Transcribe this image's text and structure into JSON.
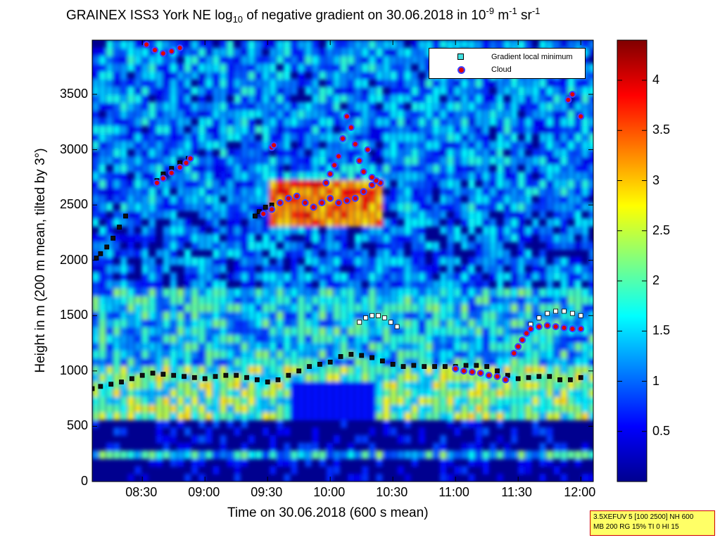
{
  "chart_data": {
    "type": "heatmap",
    "title": {
      "part1": "GRAINEX ISS3 York NE log",
      "sub1": "10",
      "part2": " of negative gradient on 30.06.2018 in 10",
      "sup1": "-9",
      "part3": " m",
      "sup2": "-1",
      "part4": " sr",
      "sup3": "-1"
    },
    "xlabel": "Time on 30.06.2018 (600 s mean)",
    "ylabel": "Height in m (200 m mean, tilted by 3°)",
    "xlim": [
      "08:06",
      "12:06"
    ],
    "ylim": [
      0,
      3990
    ],
    "x_ticks": [
      {
        "label": "08:30",
        "minutes": 510
      },
      {
        "label": "09:00",
        "minutes": 540
      },
      {
        "label": "09:30",
        "minutes": 570
      },
      {
        "label": "10:00",
        "minutes": 600
      },
      {
        "label": "10:30",
        "minutes": 630
      },
      {
        "label": "11:00",
        "minutes": 660
      },
      {
        "label": "11:30",
        "minutes": 690
      },
      {
        "label": "12:00",
        "minutes": 720
      }
    ],
    "y_ticks": [
      {
        "label": "0",
        "value": 0
      },
      {
        "label": "500",
        "value": 500
      },
      {
        "label": "1000",
        "value": 1000
      },
      {
        "label": "1500",
        "value": 1500
      },
      {
        "label": "2000",
        "value": 2000
      },
      {
        "label": "2500",
        "value": 2500
      },
      {
        "label": "3000",
        "value": 3000
      },
      {
        "label": "3500",
        "value": 3500
      }
    ],
    "colorbar": {
      "range": [
        0,
        4.4
      ],
      "ticks": [
        {
          "label": "0.5",
          "value": 0.5
        },
        {
          "label": "1",
          "value": 1
        },
        {
          "label": "1.5",
          "value": 1.5
        },
        {
          "label": "2",
          "value": 2
        },
        {
          "label": "2.5",
          "value": 2.5
        },
        {
          "label": "3",
          "value": 3
        },
        {
          "label": "3.5",
          "value": 3.5
        },
        {
          "label": "4",
          "value": 4
        }
      ],
      "colormap": "jet"
    },
    "legend": {
      "placement": "top-right",
      "entries": [
        {
          "label": "Gradient local minimum",
          "marker": "square",
          "color": "#40e0e0"
        },
        {
          "label": "Cloud",
          "marker": "circle",
          "color": "#e00000"
        }
      ]
    },
    "series": [
      {
        "name": "Gradient local minimum",
        "points": [
          [
            486,
            840
          ],
          [
            490,
            860
          ],
          [
            495,
            880
          ],
          [
            500,
            900
          ],
          [
            505,
            930
          ],
          [
            510,
            960
          ],
          [
            515,
            980
          ],
          [
            520,
            970
          ],
          [
            525,
            960
          ],
          [
            530,
            950
          ],
          [
            535,
            940
          ],
          [
            540,
            930
          ],
          [
            545,
            950
          ],
          [
            550,
            960
          ],
          [
            555,
            960
          ],
          [
            560,
            940
          ],
          [
            565,
            920
          ],
          [
            570,
            900
          ],
          [
            575,
            920
          ],
          [
            580,
            960
          ],
          [
            585,
            1000
          ],
          [
            590,
            1040
          ],
          [
            595,
            1060
          ],
          [
            600,
            1080
          ],
          [
            605,
            1130
          ],
          [
            610,
            1150
          ],
          [
            615,
            1140
          ],
          [
            620,
            1120
          ],
          [
            625,
            1090
          ],
          [
            630,
            1060
          ],
          [
            635,
            1040
          ],
          [
            640,
            1050
          ],
          [
            645,
            1040
          ],
          [
            650,
            1040
          ],
          [
            655,
            1040
          ],
          [
            660,
            1040
          ],
          [
            665,
            1050
          ],
          [
            670,
            1050
          ],
          [
            675,
            1040
          ],
          [
            680,
            1000
          ],
          [
            685,
            960
          ],
          [
            690,
            930
          ],
          [
            695,
            940
          ],
          [
            700,
            950
          ],
          [
            705,
            950
          ],
          [
            710,
            920
          ],
          [
            715,
            920
          ],
          [
            720,
            940
          ],
          [
            614,
            1440
          ],
          [
            617,
            1480
          ],
          [
            620,
            1500
          ],
          [
            623,
            1500
          ],
          [
            626,
            1480
          ],
          [
            629,
            1440
          ],
          [
            632,
            1400
          ],
          [
            488,
            2020
          ],
          [
            490,
            2060
          ],
          [
            493,
            2120
          ],
          [
            496,
            2200
          ],
          [
            499,
            2300
          ],
          [
            502,
            2400
          ],
          [
            517,
            2720
          ],
          [
            520,
            2780
          ],
          [
            524,
            2830
          ],
          [
            528,
            2880
          ],
          [
            532,
            2920
          ],
          [
            564,
            2400
          ],
          [
            566,
            2440
          ],
          [
            569,
            2480
          ],
          [
            572,
            2500
          ],
          [
            696,
            1420
          ],
          [
            700,
            1480
          ],
          [
            704,
            1520
          ],
          [
            708,
            1540
          ],
          [
            712,
            1540
          ],
          [
            716,
            1520
          ],
          [
            720,
            1500
          ]
        ]
      },
      {
        "name": "Cloud",
        "points": [
          [
            512,
            3950
          ],
          [
            516,
            3900
          ],
          [
            520,
            3870
          ],
          [
            524,
            3890
          ],
          [
            528,
            3920
          ],
          [
            517,
            2700
          ],
          [
            520,
            2740
          ],
          [
            524,
            2790
          ],
          [
            528,
            2840
          ],
          [
            531,
            2880
          ],
          [
            533,
            2920
          ],
          [
            572,
            3020
          ],
          [
            573,
            3040
          ],
          [
            568,
            2420
          ],
          [
            572,
            2460
          ],
          [
            576,
            2520
          ],
          [
            580,
            2560
          ],
          [
            584,
            2580
          ],
          [
            588,
            2520
          ],
          [
            592,
            2480
          ],
          [
            596,
            2520
          ],
          [
            600,
            2560
          ],
          [
            604,
            2520
          ],
          [
            608,
            2540
          ],
          [
            612,
            2560
          ],
          [
            616,
            2620
          ],
          [
            620,
            2680
          ],
          [
            624,
            2700
          ],
          [
            622,
            2720
          ],
          [
            598,
            2700
          ],
          [
            600,
            2780
          ],
          [
            602,
            2860
          ],
          [
            604,
            2940
          ],
          [
            606,
            3100
          ],
          [
            608,
            3300
          ],
          [
            610,
            3200
          ],
          [
            612,
            3050
          ],
          [
            614,
            2900
          ],
          [
            616,
            2800
          ],
          [
            618,
            3000
          ],
          [
            620,
            2750
          ],
          [
            660,
            1020
          ],
          [
            664,
            1000
          ],
          [
            668,
            990
          ],
          [
            672,
            980
          ],
          [
            676,
            960
          ],
          [
            680,
            950
          ],
          [
            684,
            920
          ],
          [
            688,
            1160
          ],
          [
            690,
            1220
          ],
          [
            692,
            1280
          ],
          [
            694,
            1340
          ],
          [
            696,
            1380
          ],
          [
            700,
            1400
          ],
          [
            704,
            1410
          ],
          [
            708,
            1400
          ],
          [
            712,
            1390
          ],
          [
            716,
            1380
          ],
          [
            720,
            1380
          ],
          [
            714,
            3450
          ],
          [
            716,
            3500
          ],
          [
            720,
            3300
          ]
        ]
      }
    ]
  },
  "info_box": {
    "line1": "3.5XEFUV 5 [100 2500] NH 600",
    "line2": "MB 200 RG 15% TI 0 HI 15"
  }
}
